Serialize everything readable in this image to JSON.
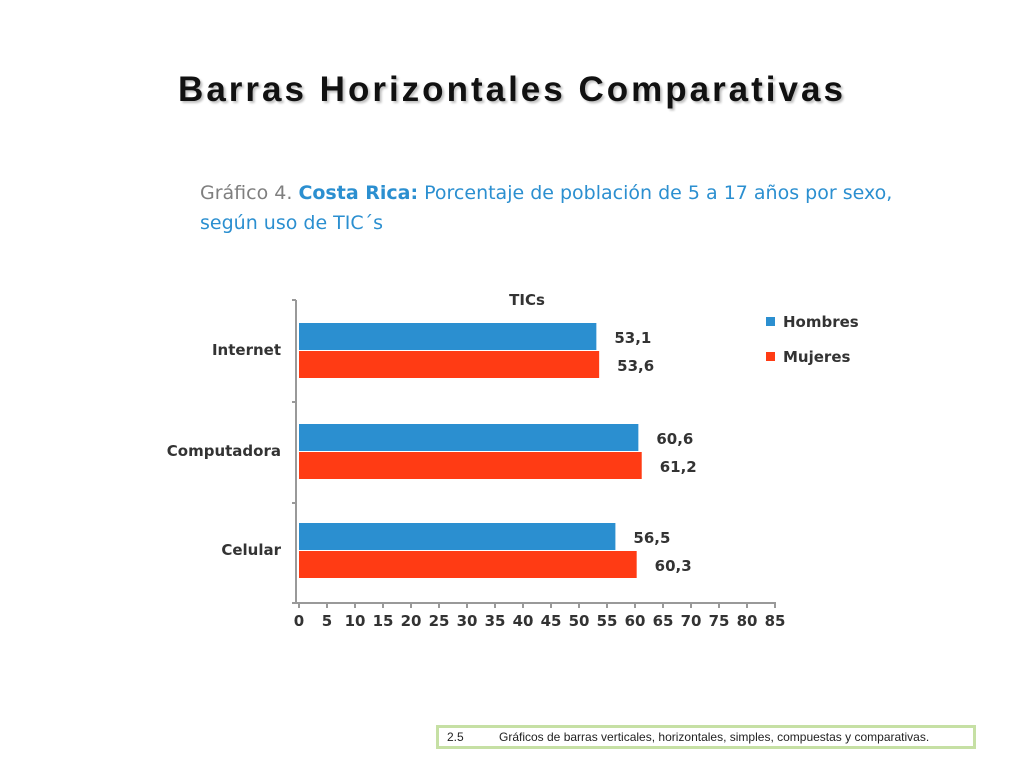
{
  "slide": {
    "title": "Barras Horizontales Comparativas"
  },
  "chart_heading": {
    "prefix": "Gráfico 4. ",
    "country": "Costa Rica:",
    "line1": " Porcentaje de población de 5 a 17 años por sexo,",
    "line2": "según uso de TIC´s"
  },
  "footer": {
    "section_number": "2.5",
    "section_text": "Gráficos de barras verticales, horizontales, simples, compuestas y comparativas."
  },
  "chart_data": {
    "type": "bar",
    "orientation": "horizontal",
    "title": "TICs",
    "categories": [
      "Internet",
      "Computadora",
      "Celular"
    ],
    "series": [
      {
        "name": "Hombres",
        "color": "#2b8fd0",
        "values": [
          53.1,
          60.6,
          56.5
        ],
        "labels": [
          "53,1",
          "60,6",
          "56,5"
        ]
      },
      {
        "name": "Mujeres",
        "color": "#ff3b14",
        "values": [
          53.6,
          61.2,
          60.3
        ],
        "labels": [
          "53,6",
          "61,2",
          "60,3"
        ]
      }
    ],
    "xlim": [
      0,
      85
    ],
    "xticks": [
      0,
      5,
      10,
      15,
      20,
      25,
      30,
      35,
      40,
      45,
      50,
      55,
      60,
      65,
      70,
      75,
      80,
      85
    ],
    "legend_position": "top-right",
    "grid": false
  }
}
